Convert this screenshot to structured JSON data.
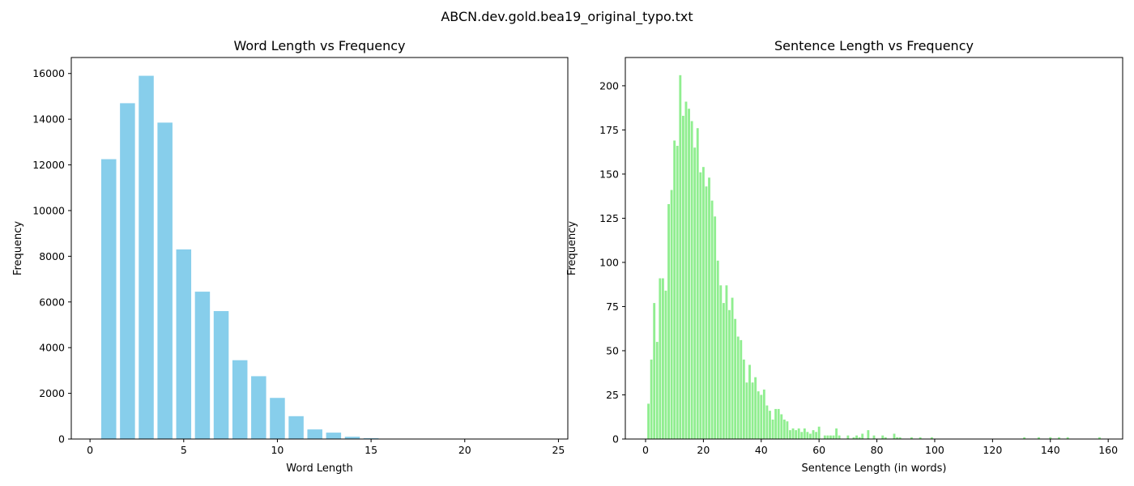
{
  "figure": {
    "suptitle": "ABCN.dev.gold.bea19_original_typo.txt"
  },
  "chart_data": [
    {
      "type": "bar",
      "title": "Word Length vs Frequency",
      "xlabel": "Word Length",
      "ylabel": "Frequency",
      "color": "#87CEEB",
      "xlim": [
        -1,
        25.5
      ],
      "ylim": [
        0,
        16700
      ],
      "xticks": [
        0,
        5,
        10,
        15,
        20,
        25
      ],
      "yticks": [
        0,
        2000,
        4000,
        6000,
        8000,
        10000,
        12000,
        14000,
        16000
      ],
      "x": [
        1,
        2,
        3,
        4,
        5,
        6,
        7,
        8,
        9,
        10,
        11,
        12,
        13,
        14,
        15,
        16,
        17,
        18,
        19,
        20,
        21,
        22,
        23,
        24
      ],
      "values": [
        12250,
        14700,
        15900,
        13850,
        8300,
        6450,
        5600,
        3450,
        2750,
        1800,
        1000,
        420,
        280,
        100,
        35,
        15,
        8,
        5,
        3,
        2,
        1,
        1,
        1,
        1
      ]
    },
    {
      "type": "bar",
      "title": "Sentence Length vs Frequency",
      "xlabel": "Sentence Length (in words)",
      "ylabel": "Frequency",
      "color": "#90EE90",
      "xlim": [
        -7,
        165
      ],
      "ylim": [
        0,
        216
      ],
      "xticks": [
        0,
        20,
        40,
        60,
        80,
        100,
        120,
        140,
        160
      ],
      "yticks": [
        0,
        25,
        50,
        75,
        100,
        125,
        150,
        175,
        200
      ],
      "x": [
        1,
        2,
        3,
        4,
        5,
        6,
        7,
        8,
        9,
        10,
        11,
        12,
        13,
        14,
        15,
        16,
        17,
        18,
        19,
        20,
        21,
        22,
        23,
        24,
        25,
        26,
        27,
        28,
        29,
        30,
        31,
        32,
        33,
        34,
        35,
        36,
        37,
        38,
        39,
        40,
        41,
        42,
        43,
        44,
        45,
        46,
        47,
        48,
        49,
        50,
        51,
        52,
        53,
        54,
        55,
        56,
        57,
        58,
        59,
        60,
        62,
        63,
        64,
        65,
        66,
        67,
        70,
        72,
        73,
        74,
        75,
        77,
        79,
        82,
        83,
        86,
        87,
        88,
        92,
        95,
        99,
        131,
        136,
        140,
        143,
        146,
        157
      ],
      "values": [
        20,
        45,
        77,
        55,
        91,
        91,
        84,
        133,
        141,
        169,
        166,
        206,
        183,
        191,
        187,
        180,
        165,
        176,
        151,
        154,
        143,
        148,
        135,
        126,
        101,
        87,
        77,
        87,
        73,
        80,
        68,
        58,
        56,
        45,
        32,
        42,
        32,
        35,
        27,
        25,
        28,
        19,
        16,
        11,
        17,
        17,
        14,
        11,
        10,
        5,
        6,
        5,
        6,
        4,
        6,
        4,
        3,
        5,
        4,
        7,
        2,
        2,
        2,
        2,
        6,
        2,
        2,
        1,
        2,
        1,
        3,
        5,
        2,
        2,
        1,
        3,
        1,
        1,
        1,
        1,
        1,
        1,
        1,
        1,
        1,
        1,
        1
      ]
    }
  ]
}
